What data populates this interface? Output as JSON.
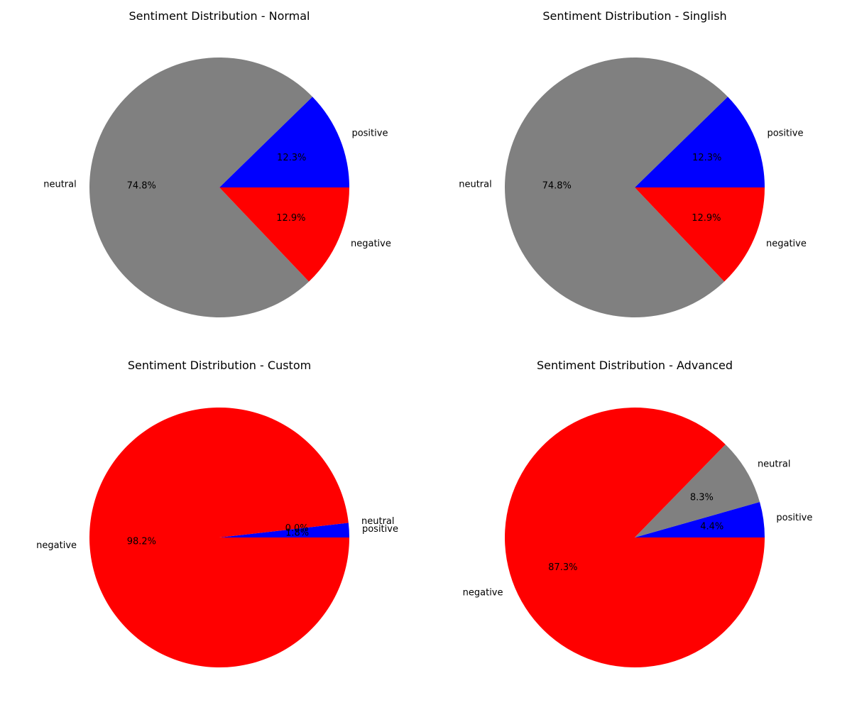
{
  "chart_data": [
    {
      "type": "pie",
      "title": "Sentiment Distribution - Normal",
      "slices": [
        {
          "label": "positive",
          "value": 12.3,
          "pct_text": "12.3%",
          "color": "#0000ff"
        },
        {
          "label": "neutral",
          "value": 74.8,
          "pct_text": "74.8%",
          "color": "#808080"
        },
        {
          "label": "negative",
          "value": 12.9,
          "pct_text": "12.9%",
          "color": "#ff0000"
        }
      ]
    },
    {
      "type": "pie",
      "title": "Sentiment Distribution - Singlish",
      "slices": [
        {
          "label": "positive",
          "value": 12.3,
          "pct_text": "12.3%",
          "color": "#0000ff"
        },
        {
          "label": "neutral",
          "value": 74.8,
          "pct_text": "74.8%",
          "color": "#808080"
        },
        {
          "label": "negative",
          "value": 12.9,
          "pct_text": "12.9%",
          "color": "#ff0000"
        }
      ]
    },
    {
      "type": "pie",
      "title": "Sentiment Distribution - Custom",
      "slices": [
        {
          "label": "positive",
          "value": 1.8,
          "pct_text": "1.8%",
          "color": "#0000ff"
        },
        {
          "label": "neutral",
          "value": 0.0,
          "pct_text": "0.0%",
          "color": "#808080"
        },
        {
          "label": "negative",
          "value": 98.2,
          "pct_text": "98.2%",
          "color": "#ff0000"
        }
      ]
    },
    {
      "type": "pie",
      "title": "Sentiment Distribution - Advanced",
      "slices": [
        {
          "label": "positive",
          "value": 4.4,
          "pct_text": "4.4%",
          "color": "#0000ff"
        },
        {
          "label": "neutral",
          "value": 8.3,
          "pct_text": "8.3%",
          "color": "#808080"
        },
        {
          "label": "negative",
          "value": 87.3,
          "pct_text": "87.3%",
          "color": "#ff0000"
        }
      ]
    }
  ]
}
